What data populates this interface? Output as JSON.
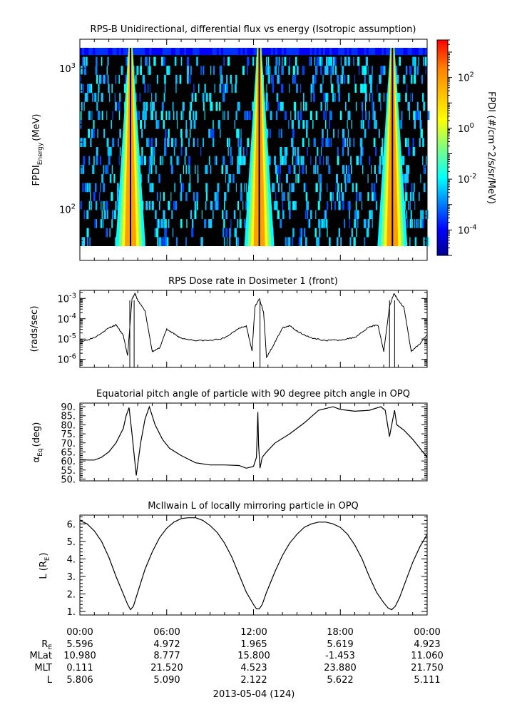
{
  "chart_data": [
    {
      "type": "heatmap",
      "title": "RPS-B  Unidirectional, differential flux vs energy (Isotropic assumption)",
      "ylabel_main": "FPDI",
      "ylabel_sub": "Energy",
      "ylabel_unit": "(MeV)",
      "yscale": "log",
      "ylim": [
        55,
        1400
      ],
      "yticks": [
        {
          "base": "10",
          "exp": "3",
          "value": 1000
        },
        {
          "base": "10",
          "exp": "2",
          "value": 100
        }
      ],
      "colorbar_label": "FPDI (#/cm^2/s/sr/MeV)",
      "colorbar_range": [
        1e-05,
        3000
      ],
      "colorbar_ticks": [
        {
          "base": "10",
          "exp": "2",
          "value": 100
        },
        {
          "base": "10",
          "exp": "0",
          "value": 1
        },
        {
          "base": "10",
          "exp": "-2",
          "value": 0.01
        },
        {
          "base": "10",
          "exp": "-4",
          "value": 0.0001
        }
      ],
      "colorscale": [
        "#00008f",
        "#0000ff",
        "#00ffff",
        "#7fff7f",
        "#ffff00",
        "#ff7f00",
        "#ff0000"
      ],
      "belt_crossings_hours": [
        3.5,
        12.4,
        21.6
      ],
      "xlim_hours": [
        0,
        24
      ]
    },
    {
      "type": "line",
      "title": "RPS  Dose rate in Dosimeter 1 (front)",
      "ylabel": "(rads/sec)",
      "yscale": "log",
      "ylim": [
        4e-07,
        0.0025
      ],
      "yticks": [
        {
          "base": "10",
          "exp": "-3",
          "value": 0.001
        },
        {
          "base": "10",
          "exp": "-4",
          "value": 0.0001
        },
        {
          "base": "10",
          "exp": "-5",
          "value": 1e-05
        },
        {
          "base": "10",
          "exp": "-6",
          "value": 1e-06
        }
      ],
      "x": [
        0,
        1,
        2,
        2.5,
        3,
        3.3,
        3.6,
        3.8,
        4,
        4.5,
        5,
        5.5,
        6,
        6.5,
        7,
        8,
        9,
        10,
        11,
        11.5,
        11.9,
        12.1,
        12.4,
        12.7,
        12.9,
        13.3,
        14,
        14.5,
        15,
        16,
        17,
        18,
        19,
        20,
        20.6,
        21,
        21.4,
        21.7,
        22,
        22.4,
        22.9,
        23.5,
        24
      ],
      "values": [
        7e-06,
        1.2e-05,
        3.5e-05,
        5e-05,
        1.5e-05,
        1.5e-06,
        0.0009,
        0.0018,
        0.0008,
        0.00025,
        2.5e-06,
        3.5e-06,
        3e-05,
        1.8e-05,
        1.1e-05,
        8.5e-06,
        8.5e-06,
        1.1e-05,
        3.5e-05,
        4.5e-05,
        2.5e-06,
        0.0004,
        0.001,
        0.0002,
        1.2e-06,
        4e-06,
        3.5e-05,
        4.5e-05,
        2.5e-05,
        1.1e-05,
        8.5e-06,
        9e-06,
        1.2e-05,
        4e-05,
        5e-05,
        2.5e-06,
        0.0004,
        0.0018,
        0.0008,
        0.00035,
        2.5e-06,
        6e-06,
        1.6e-05
      ],
      "xlim_hours": [
        0,
        24
      ]
    },
    {
      "type": "line",
      "title": "Equatorial pitch angle of particle with 90 degree pitch angle in OPQ",
      "ylabel_main": "α",
      "ylabel_sub": "Eq",
      "ylabel_unit": "(deg)",
      "ylim": [
        49,
        92
      ],
      "yticks": [
        90,
        85,
        80,
        75,
        70,
        65,
        60,
        55,
        50
      ],
      "ytick_labels": [
        "90.",
        "85.",
        "80.",
        "75.",
        "70.",
        "65.",
        "60.",
        "55.",
        "50."
      ],
      "x": [
        0,
        0.5,
        1,
        1.5,
        2,
        2.5,
        3,
        3.2,
        3.4,
        3.6,
        3.9,
        4.2,
        4.5,
        4.8,
        5.2,
        5.7,
        6.2,
        7,
        8,
        9,
        10,
        11,
        11.5,
        12,
        12.2,
        12.3,
        12.35,
        12.45,
        12.6,
        12.9,
        13.5,
        14.5,
        15.5,
        16.5,
        17.5,
        18,
        19,
        20,
        20.8,
        21.1,
        21.4,
        21.6,
        21.75,
        21.9,
        22.4,
        23,
        23.5,
        24
      ],
      "values": [
        61,
        60.5,
        60.5,
        62,
        65,
        70,
        78,
        85,
        89.5,
        75,
        52,
        70,
        83,
        90,
        80,
        72,
        67,
        63,
        59,
        57.8,
        57.8,
        57.5,
        56,
        57,
        62,
        87,
        69,
        56,
        62,
        65,
        70,
        75,
        81,
        88,
        90,
        88.5,
        87.5,
        88,
        90,
        88,
        73.5,
        82,
        88,
        80,
        77,
        72,
        67,
        62
      ],
      "xlim_hours": [
        0,
        24
      ]
    },
    {
      "type": "line",
      "title": "McIlwain L of locally mirroring particle in OPQ",
      "ylabel_main": "L (R",
      "ylabel_sub": "E",
      "ylabel_unit": ")",
      "ylim": [
        0.8,
        6.5
      ],
      "yticks": [
        6,
        5,
        4,
        3,
        2,
        1
      ],
      "ytick_labels": [
        "6.",
        "5.",
        "4.",
        "3.",
        "2.",
        "1."
      ],
      "x": [
        0,
        0.5,
        1,
        1.5,
        2,
        2.5,
        3,
        3.3,
        3.5,
        3.7,
        4,
        4.5,
        5,
        5.5,
        6,
        6.5,
        7,
        7.5,
        8,
        8.5,
        9,
        9.5,
        10,
        10.5,
        11,
        11.5,
        12,
        12.2,
        12.4,
        12.6,
        12.9,
        13.5,
        14,
        14.5,
        15,
        15.5,
        16,
        16.5,
        17,
        17.5,
        18,
        18.5,
        19,
        19.5,
        20,
        20.5,
        21,
        21.3,
        21.55,
        21.8,
        22.1,
        22.5,
        23,
        23.5,
        24
      ],
      "values": [
        6.2,
        6.0,
        5.6,
        5.0,
        4.1,
        3.0,
        2.0,
        1.4,
        1.1,
        1.3,
        2.1,
        3.4,
        4.4,
        5.2,
        5.75,
        6.1,
        6.3,
        6.35,
        6.35,
        6.2,
        5.9,
        5.5,
        4.9,
        4.1,
        3.1,
        2.1,
        1.4,
        1.15,
        1.15,
        1.4,
        2.1,
        3.3,
        4.2,
        4.9,
        5.4,
        5.8,
        6.0,
        6.1,
        6.1,
        6.0,
        5.8,
        5.4,
        4.8,
        4.0,
        3.0,
        2.1,
        1.5,
        1.2,
        1.1,
        1.3,
        1.8,
        2.7,
        3.8,
        4.7,
        5.4
      ],
      "xlim_hours": [
        0,
        24
      ]
    }
  ],
  "xaxis": {
    "tick_labels": [
      "00:00",
      "06:00",
      "12:00",
      "18:00",
      "00:00"
    ],
    "date_label": "2013-05-04 (124)"
  },
  "ephemeris": {
    "rows": [
      {
        "label_main": "R",
        "label_sub": "E",
        "values": [
          "5.596",
          "4.972",
          "1.965",
          "5.619",
          "4.923"
        ]
      },
      {
        "label_main": "MLat",
        "label_sub": "",
        "values": [
          "10.980",
          "8.777",
          "15.800",
          "-1.453",
          "11.060"
        ]
      },
      {
        "label_main": "MLT",
        "label_sub": "",
        "values": [
          "0.111",
          "21.520",
          "4.523",
          "23.880",
          "21.750"
        ]
      },
      {
        "label_main": "L",
        "label_sub": "",
        "values": [
          "5.806",
          "5.090",
          "2.122",
          "5.622",
          "5.111"
        ]
      }
    ]
  }
}
